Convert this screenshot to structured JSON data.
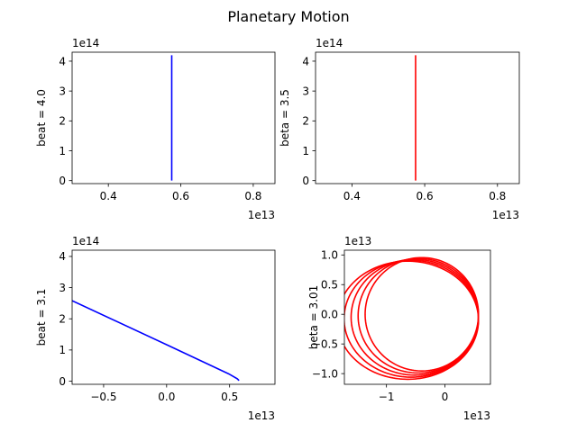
{
  "title": "Planetary Motion",
  "chart_data": [
    {
      "type": "line",
      "ylabel": "beat = 4.0",
      "color": "#0000ff",
      "x_offset_label": "1e13",
      "y_offset_label": "1e14",
      "xlim": [
        0.3,
        0.86
      ],
      "ylim": [
        -0.1,
        4.3
      ],
      "xticks": [
        0.4,
        0.6,
        0.8
      ],
      "xtick_labels": [
        "0.4",
        "0.6",
        "0.8"
      ],
      "yticks": [
        0,
        1,
        2,
        3,
        4
      ],
      "ytick_labels": [
        "0",
        "1",
        "2",
        "3",
        "4"
      ],
      "series": [
        {
          "x": [
            0.575,
            0.575,
            0.575,
            0.575
          ],
          "y": [
            0.0,
            1.5,
            3.0,
            4.2
          ]
        }
      ]
    },
    {
      "type": "line",
      "ylabel": "beta = 3.5",
      "color": "#ff0000",
      "x_offset_label": "1e13",
      "y_offset_label": "1e14",
      "xlim": [
        0.3,
        0.86
      ],
      "ylim": [
        -0.1,
        4.3
      ],
      "xticks": [
        0.4,
        0.6,
        0.8
      ],
      "xtick_labels": [
        "0.4",
        "0.6",
        "0.8"
      ],
      "yticks": [
        0,
        1,
        2,
        3,
        4
      ],
      "ytick_labels": [
        "0",
        "1",
        "2",
        "3",
        "4"
      ],
      "series": [
        {
          "x": [
            0.575,
            0.575,
            0.575,
            0.575
          ],
          "y": [
            0.0,
            1.5,
            3.0,
            4.2
          ]
        }
      ]
    },
    {
      "type": "line",
      "ylabel": "beat = 3.1",
      "color": "#0000ff",
      "x_offset_label": "1e13",
      "y_offset_label": "1e14",
      "xlim": [
        -0.75,
        0.86
      ],
      "ylim": [
        -0.1,
        4.2
      ],
      "xticks": [
        -0.5,
        0.0,
        0.5
      ],
      "xtick_labels": [
        "−0.5",
        "0.0",
        "0.5"
      ],
      "yticks": [
        0,
        1,
        2,
        3,
        4
      ],
      "ytick_labels": [
        "0",
        "1",
        "2",
        "3",
        "4"
      ],
      "series": [
        {
          "x": [
            -0.75,
            0.0,
            0.5,
            0.56,
            0.575
          ],
          "y": [
            2.58,
            1.17,
            0.22,
            0.08,
            0.02
          ]
        }
      ]
    },
    {
      "type": "line",
      "ylabel": "beta = 3.01",
      "color": "#ff0000",
      "x_offset_label": "1e13",
      "y_offset_label": "1e13",
      "xlim": [
        -1.72,
        0.78
      ],
      "ylim": [
        -1.18,
        1.08
      ],
      "xticks": [
        -1,
        0
      ],
      "xtick_labels": [
        "−1",
        "0"
      ],
      "yticks": [
        -1.0,
        -0.5,
        0.0,
        0.5,
        1.0
      ],
      "ytick_labels": [
        "−1.0",
        "−0.5",
        "0.0",
        "0.5",
        "1.0"
      ],
      "orbits": [
        {
          "cx": -0.395,
          "cy": 0.0,
          "rx": 0.97,
          "ry": 0.955
        },
        {
          "cx": -0.455,
          "cy": -0.025,
          "rx": 1.03,
          "ry": 0.965
        },
        {
          "cx": -0.515,
          "cy": -0.05,
          "rx": 1.09,
          "ry": 0.975
        },
        {
          "cx": -0.575,
          "cy": -0.075,
          "rx": 1.15,
          "ry": 0.985
        },
        {
          "cx": -0.635,
          "cy": -0.1,
          "rx": 1.21,
          "ry": 0.995
        }
      ]
    }
  ]
}
